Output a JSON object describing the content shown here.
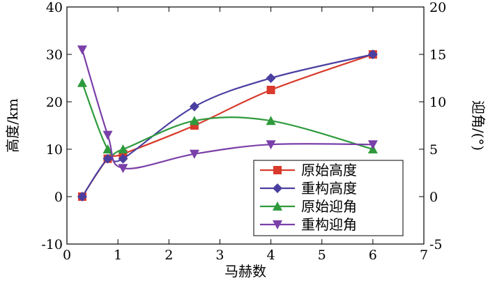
{
  "chart_data": {
    "type": "line",
    "title": "",
    "xlabel": "马赫数",
    "ylabel_left": "高度/km",
    "ylabel_right": "迎角/(°)",
    "xlim": [
      0,
      7
    ],
    "ylim_left": [
      -10,
      40
    ],
    "ylim_right": [
      -5,
      20
    ],
    "x_ticks": [
      0,
      1,
      2,
      3,
      4,
      5,
      6,
      7
    ],
    "y_ticks_left": [
      -10,
      0,
      10,
      20,
      30,
      40
    ],
    "y_ticks_right": [
      -5,
      0,
      5,
      10,
      15,
      20
    ],
    "grid": false,
    "legend_position": "bottom-right",
    "series": [
      {
        "name": "原始高度",
        "axis": "left",
        "color": "#d93a2b",
        "marker": "square",
        "x": [
          0.3,
          0.8,
          1.1,
          2.5,
          4.0,
          6.0
        ],
        "values": [
          0,
          8,
          9,
          15,
          22.5,
          30
        ]
      },
      {
        "name": "重构高度",
        "axis": "left",
        "color": "#4a3fa0",
        "marker": "diamond",
        "x": [
          0.3,
          0.8,
          1.1,
          2.5,
          4.0,
          6.0
        ],
        "values": [
          0,
          8,
          8,
          19,
          25,
          30
        ]
      },
      {
        "name": "原始迎角",
        "axis": "right",
        "color": "#2e9a3c",
        "marker": "triangle-up",
        "x": [
          0.3,
          0.8,
          1.1,
          2.5,
          4.0,
          6.0
        ],
        "values": [
          12,
          5,
          5,
          8,
          8,
          5
        ]
      },
      {
        "name": "重构迎角",
        "axis": "right",
        "color": "#7a3fa8",
        "marker": "triangle-down",
        "x": [
          0.3,
          0.8,
          1.1,
          2.5,
          4.0,
          6.0
        ],
        "values": [
          15.5,
          6.5,
          3,
          4.5,
          5.5,
          5.5
        ]
      }
    ]
  }
}
